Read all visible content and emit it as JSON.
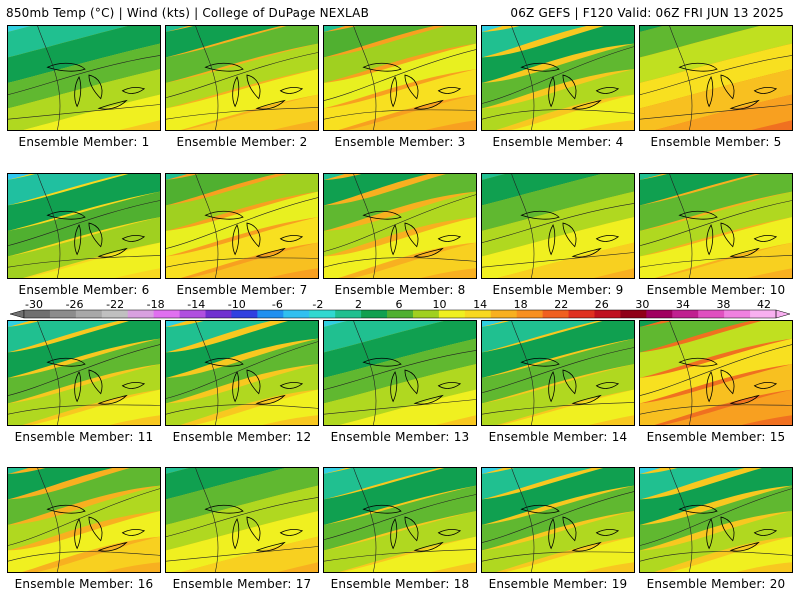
{
  "header": {
    "left": "850mb Temp (°C) | Wind (kts) | College of DuPage NEXLAB",
    "right": "06Z GEFS | F120 Valid: 06Z FRI JUN 13 2025"
  },
  "member_label_prefix": "Ensemble Member:",
  "members": [
    {
      "id": 1,
      "label": "Ensemble Member: 1",
      "style": "cool"
    },
    {
      "id": 2,
      "label": "Ensemble Member: 2",
      "style": "mild"
    },
    {
      "id": 3,
      "label": "Ensemble Member: 3",
      "style": "warm"
    },
    {
      "id": 4,
      "label": "Ensemble Member: 4",
      "style": "cool"
    },
    {
      "id": 5,
      "label": "Ensemble Member: 5",
      "style": "hot"
    },
    {
      "id": 6,
      "label": "Ensemble Member: 6",
      "style": "cold"
    },
    {
      "id": 7,
      "label": "Ensemble Member: 7",
      "style": "warm"
    },
    {
      "id": 8,
      "label": "Ensemble Member: 8",
      "style": "mild"
    },
    {
      "id": 9,
      "label": "Ensemble Member: 9",
      "style": "mild"
    },
    {
      "id": 10,
      "label": "Ensemble Member: 10",
      "style": "mild"
    },
    {
      "id": 11,
      "label": "Ensemble Member: 11",
      "style": "cool"
    },
    {
      "id": 12,
      "label": "Ensemble Member: 12",
      "style": "cool"
    },
    {
      "id": 13,
      "label": "Ensemble Member: 13",
      "style": "cool"
    },
    {
      "id": 14,
      "label": "Ensemble Member: 14",
      "style": "cool"
    },
    {
      "id": 15,
      "label": "Ensemble Member: 15",
      "style": "hot"
    },
    {
      "id": 16,
      "label": "Ensemble Member: 16",
      "style": "mild"
    },
    {
      "id": 17,
      "label": "Ensemble Member: 17",
      "style": "mild"
    },
    {
      "id": 18,
      "label": "Ensemble Member: 18",
      "style": "cool"
    },
    {
      "id": 19,
      "label": "Ensemble Member: 19",
      "style": "cool"
    },
    {
      "id": 20,
      "label": "Ensemble Member: 20",
      "style": "cool"
    }
  ],
  "colorbar": {
    "ticks": [
      "-30",
      "-26",
      "-22",
      "-18",
      "-14",
      "-10",
      "-6",
      "-2",
      "2",
      "6",
      "10",
      "14",
      "18",
      "22",
      "26",
      "30",
      "34",
      "38",
      "42"
    ],
    "colors": [
      "#707070",
      "#8c8c8c",
      "#a8a8a8",
      "#c0c0c0",
      "#d8a0e0",
      "#e070f0",
      "#b050e0",
      "#7030d0",
      "#3040e0",
      "#2090f0",
      "#30c0f0",
      "#30d8d0",
      "#20c090",
      "#10a050",
      "#50b030",
      "#a0d020",
      "#f0f020",
      "#f8d820",
      "#f8b020",
      "#f89020",
      "#f06020",
      "#e03020",
      "#c01020",
      "#900018",
      "#a00060",
      "#c02090",
      "#e050c0",
      "#f080e0",
      "#f8b0f0"
    ]
  },
  "palette": {
    "cold": [
      "#30c8f0",
      "#20c0a0",
      "#10a050",
      "#50b030",
      "#a0d020",
      "#f0f020",
      "#f8d820"
    ],
    "cool": [
      "#30d0e0",
      "#20c090",
      "#10a050",
      "#60b830",
      "#b0d820",
      "#f0f020",
      "#f8c820"
    ],
    "mild": [
      "#20c090",
      "#10a050",
      "#60b830",
      "#b0d820",
      "#f0f020",
      "#f8d020",
      "#f8b020"
    ],
    "warm": [
      "#20c090",
      "#50b030",
      "#a0d020",
      "#e8f020",
      "#f8e020",
      "#f8c020",
      "#f8a020"
    ],
    "hot": [
      "#10a050",
      "#60b830",
      "#c0e020",
      "#f8e020",
      "#f8c020",
      "#f8a020",
      "#f07020"
    ]
  }
}
